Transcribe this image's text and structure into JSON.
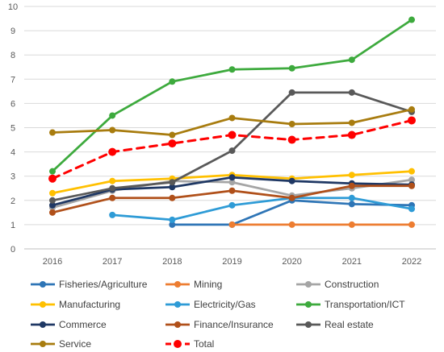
{
  "chart_data": {
    "type": "line",
    "x": [
      2016,
      2017,
      2018,
      2019,
      2020,
      2021,
      2022
    ],
    "ylim": [
      0,
      10
    ],
    "yticks": [
      "0",
      "1",
      "2",
      "3",
      "4",
      "5",
      "6",
      "7",
      "8",
      "9",
      "10"
    ],
    "xticks": [
      "2016",
      "2017",
      "2018",
      "2019",
      "2020",
      "2021",
      "2022"
    ],
    "grid": true,
    "legend_position": "bottom",
    "series": [
      {
        "name": "Fisheries/Agriculture",
        "color": "#2E75B6",
        "dash": false,
        "values": [
          null,
          null,
          1.0,
          1.0,
          2.0,
          1.85,
          1.8
        ]
      },
      {
        "name": "Mining",
        "color": "#ED7D31",
        "dash": false,
        "values": [
          null,
          null,
          null,
          1.0,
          1.0,
          1.0,
          1.0
        ]
      },
      {
        "name": "Construction",
        "color": "#A5A5A5",
        "dash": false,
        "values": [
          1.7,
          2.4,
          2.8,
          2.75,
          2.2,
          2.5,
          2.85
        ]
      },
      {
        "name": "Manufacturing",
        "color": "#FFC000",
        "dash": false,
        "values": [
          2.3,
          2.8,
          2.9,
          3.05,
          2.9,
          3.05,
          3.2
        ]
      },
      {
        "name": "Electricity/Gas",
        "color": "#2E9BD6",
        "dash": false,
        "values": [
          null,
          1.4,
          1.2,
          1.8,
          2.1,
          2.1,
          1.65
        ]
      },
      {
        "name": "Transportation/ICT",
        "color": "#3DAA3D",
        "dash": false,
        "values": [
          3.2,
          5.5,
          6.9,
          7.4,
          7.45,
          7.8,
          9.45
        ]
      },
      {
        "name": "Commerce",
        "color": "#1F3864",
        "dash": false,
        "values": [
          1.8,
          2.45,
          2.55,
          2.95,
          2.8,
          2.7,
          2.65
        ]
      },
      {
        "name": "Finance/Insurance",
        "color": "#B0501A",
        "dash": false,
        "values": [
          1.5,
          2.1,
          2.1,
          2.4,
          2.1,
          2.6,
          2.6
        ]
      },
      {
        "name": "Real estate",
        "color": "#595959",
        "dash": false,
        "values": [
          2.0,
          2.5,
          2.75,
          4.05,
          6.45,
          6.45,
          5.65
        ]
      },
      {
        "name": "Service",
        "color": "#A87C0F",
        "dash": false,
        "values": [
          4.8,
          4.9,
          4.7,
          5.4,
          5.15,
          5.2,
          5.75
        ]
      },
      {
        "name": "Total",
        "color": "#FF0000",
        "dash": true,
        "values": [
          2.9,
          4.0,
          4.35,
          4.7,
          4.5,
          4.7,
          5.3
        ]
      }
    ]
  }
}
